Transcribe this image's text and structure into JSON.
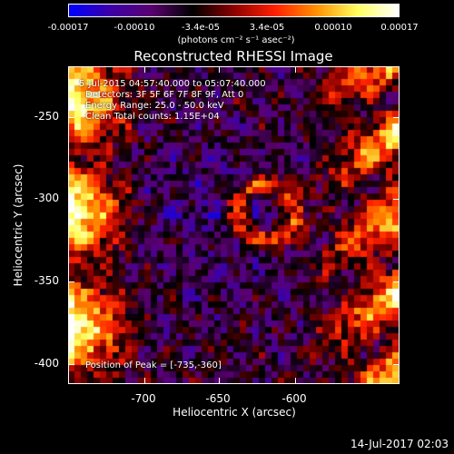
{
  "colorbar": {
    "ticks": [
      "-0.00017",
      "-0.00010",
      "-3.4e-05",
      "3.4e-05",
      "0.00010",
      "0.00017"
    ],
    "unit_label": "(photons cm⁻² s⁻¹ asec⁻²)",
    "colors": [
      "#0000ff",
      "#3c00a8",
      "#5a0070",
      "#000000",
      "#8c0000",
      "#ff2000",
      "#ff9000",
      "#ffff60",
      "#ffffff"
    ]
  },
  "title": "Reconstructed RHESSI Image",
  "info": {
    "time": "5-Jul-2015 04:57:40.000 to 05:07:40.000",
    "detectors": "Detectors: 3F 5F 6F 7F 8F 9F, Att 0",
    "energy": "Energy Range: 25.0 - 50.0 keV",
    "clean": "Clean     Total counts: 1.15E+04",
    "peak": "Position of Peak = [-735,-360]"
  },
  "axes": {
    "xlabel": "Heliocentric X (arcsec)",
    "ylabel": "Heliocentric Y (arcsec)",
    "xticks": [
      "-700",
      "-650",
      "-600"
    ],
    "yticks": [
      "-250",
      "-300",
      "-350",
      "-400"
    ],
    "xlim": [
      -745,
      -635
    ],
    "ylim": [
      -412,
      -232
    ]
  },
  "footer": {
    "timestamp": "14-Jul-2017 02:03"
  }
}
